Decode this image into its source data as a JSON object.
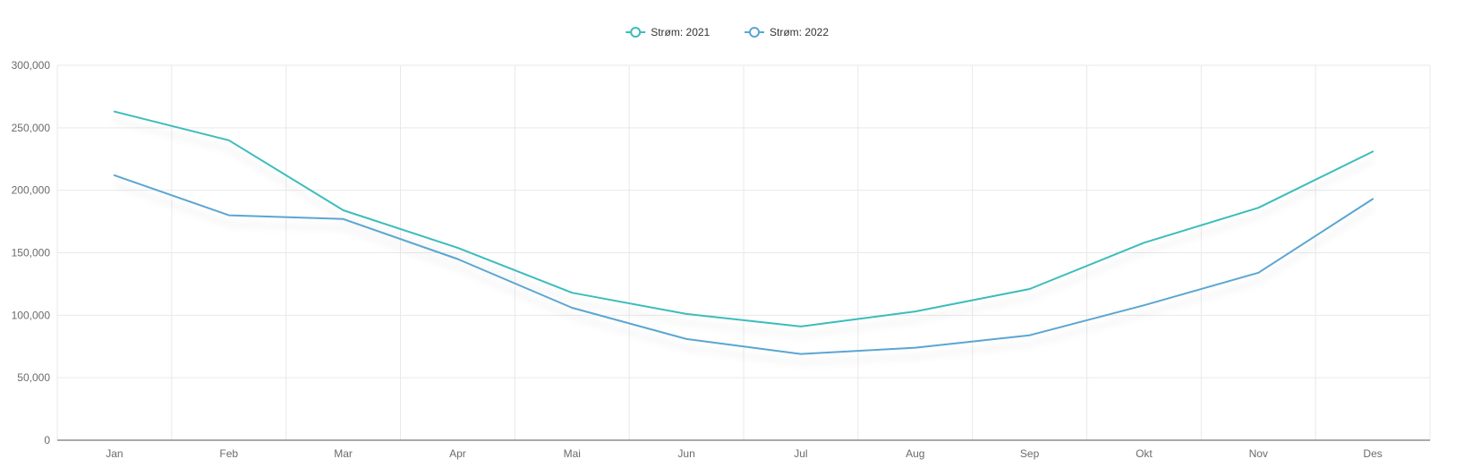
{
  "chart_data": {
    "type": "line",
    "title": "",
    "xlabel": "",
    "ylabel": "",
    "categories": [
      "Jan",
      "Feb",
      "Mar",
      "Apr",
      "Mai",
      "Jun",
      "Jul",
      "Aug",
      "Sep",
      "Okt",
      "Nov",
      "Des"
    ],
    "y_ticks": [
      "0",
      "50,000",
      "100,000",
      "150,000",
      "200,000",
      "250,000",
      "300,000"
    ],
    "ylim": [
      0,
      300000
    ],
    "grid": true,
    "legend_position": "top-center",
    "series": [
      {
        "name": "Strøm: 2021",
        "color": "#3ebcbc",
        "values": [
          263000,
          240000,
          184000,
          154000,
          118000,
          101000,
          91000,
          103000,
          121000,
          158000,
          186000,
          231000
        ]
      },
      {
        "name": "Strøm: 2022",
        "color": "#5aa6d3",
        "values": [
          212000,
          180000,
          177000,
          145000,
          106000,
          81000,
          69000,
          74000,
          84000,
          108000,
          134000,
          193000
        ]
      }
    ]
  }
}
